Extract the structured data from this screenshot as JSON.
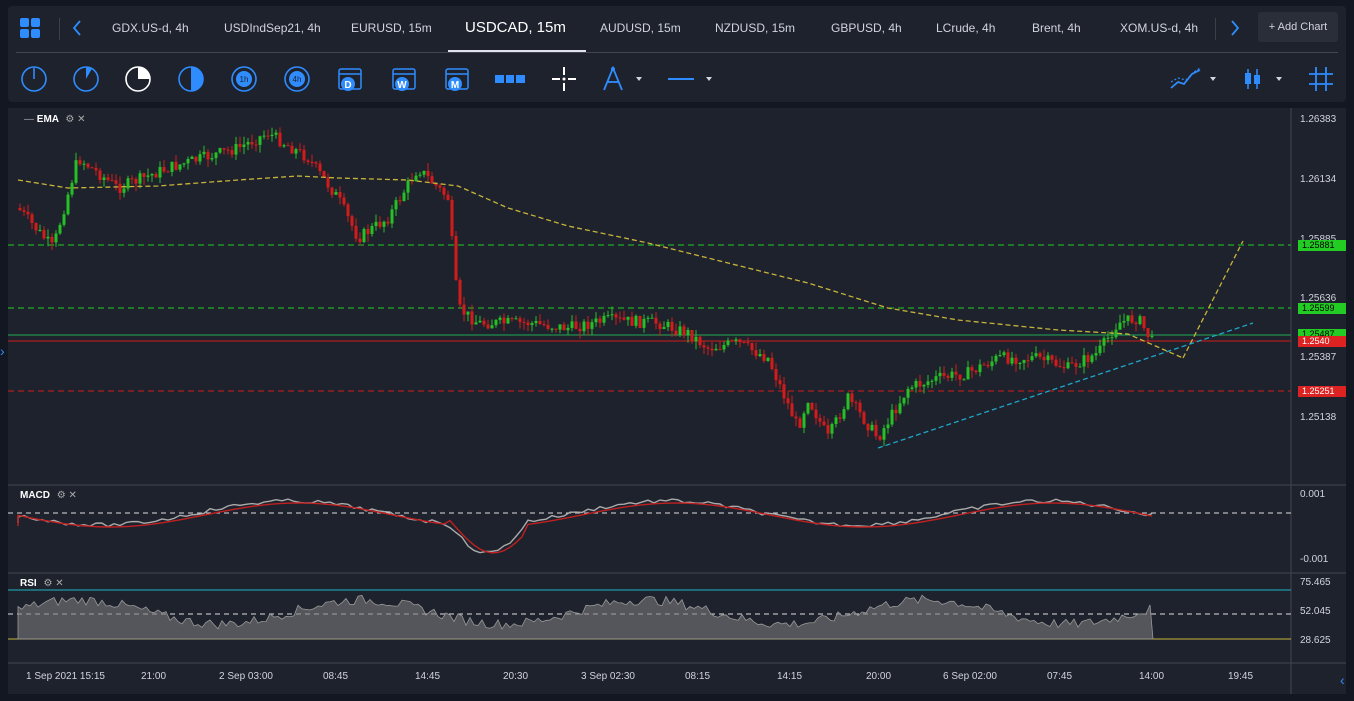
{
  "tabs": [
    {
      "label": "GDX.US-d, 4h"
    },
    {
      "label": "USDIndSep21, 4h"
    },
    {
      "label": "EURUSD, 15m"
    },
    {
      "label": "USDCAD, 15m"
    },
    {
      "label": "AUDUSD, 15m"
    },
    {
      "label": "NZDUSD, 15m"
    },
    {
      "label": "GBPUSD, 4h"
    },
    {
      "label": "LCrude, 4h"
    },
    {
      "label": "Brent, 4h"
    },
    {
      "label": "XOM.US-d, 4h"
    }
  ],
  "add_chart_label": "+ Add Chart",
  "toolbar": {
    "timeframe_icons": [
      "clock-1m-icon",
      "clock-5m-icon",
      "clock-15m-icon",
      "clock-30m-icon",
      "clock-1h-icon",
      "clock-4h-icon"
    ],
    "period_labels": [
      "D",
      "W",
      "M"
    ],
    "hour_labels": [
      "1h",
      "4h"
    ]
  },
  "indicators": {
    "ema": "EMA",
    "macd": "MACD",
    "rsi": "RSI"
  },
  "price_axis": [
    "1.26383",
    "1.26134",
    "1.25885",
    "1.25636",
    "1.25387",
    "1.25138"
  ],
  "price_tags": [
    {
      "text": "1.25881",
      "color": "#22cc22"
    },
    {
      "text": "1.25599",
      "color": "#22cc22"
    },
    {
      "text": "1.25487",
      "color": "#22cc22"
    },
    {
      "text": "1.2540",
      "color": "#dd2222"
    },
    {
      "text": "1.25251",
      "color": "#dd2222"
    }
  ],
  "macd_axis": [
    "0.001",
    "-0.001"
  ],
  "rsi_axis": [
    "75.465",
    "52.045",
    "28.625"
  ],
  "time_axis": [
    "1 Sep 2021 15:15",
    "21:00",
    "2 Sep 03:00",
    "08:45",
    "14:45",
    "20:30",
    "3 Sep 02:30",
    "08:15",
    "14:15",
    "20:00",
    "6 Sep 02:00",
    "07:45",
    "14:00",
    "19:45"
  ],
  "colors": {
    "up": "#26c026",
    "down": "#d21c1c",
    "ema": "#c8b43a",
    "trend": "#1fa6c8",
    "accent": "#2f8cff"
  }
}
